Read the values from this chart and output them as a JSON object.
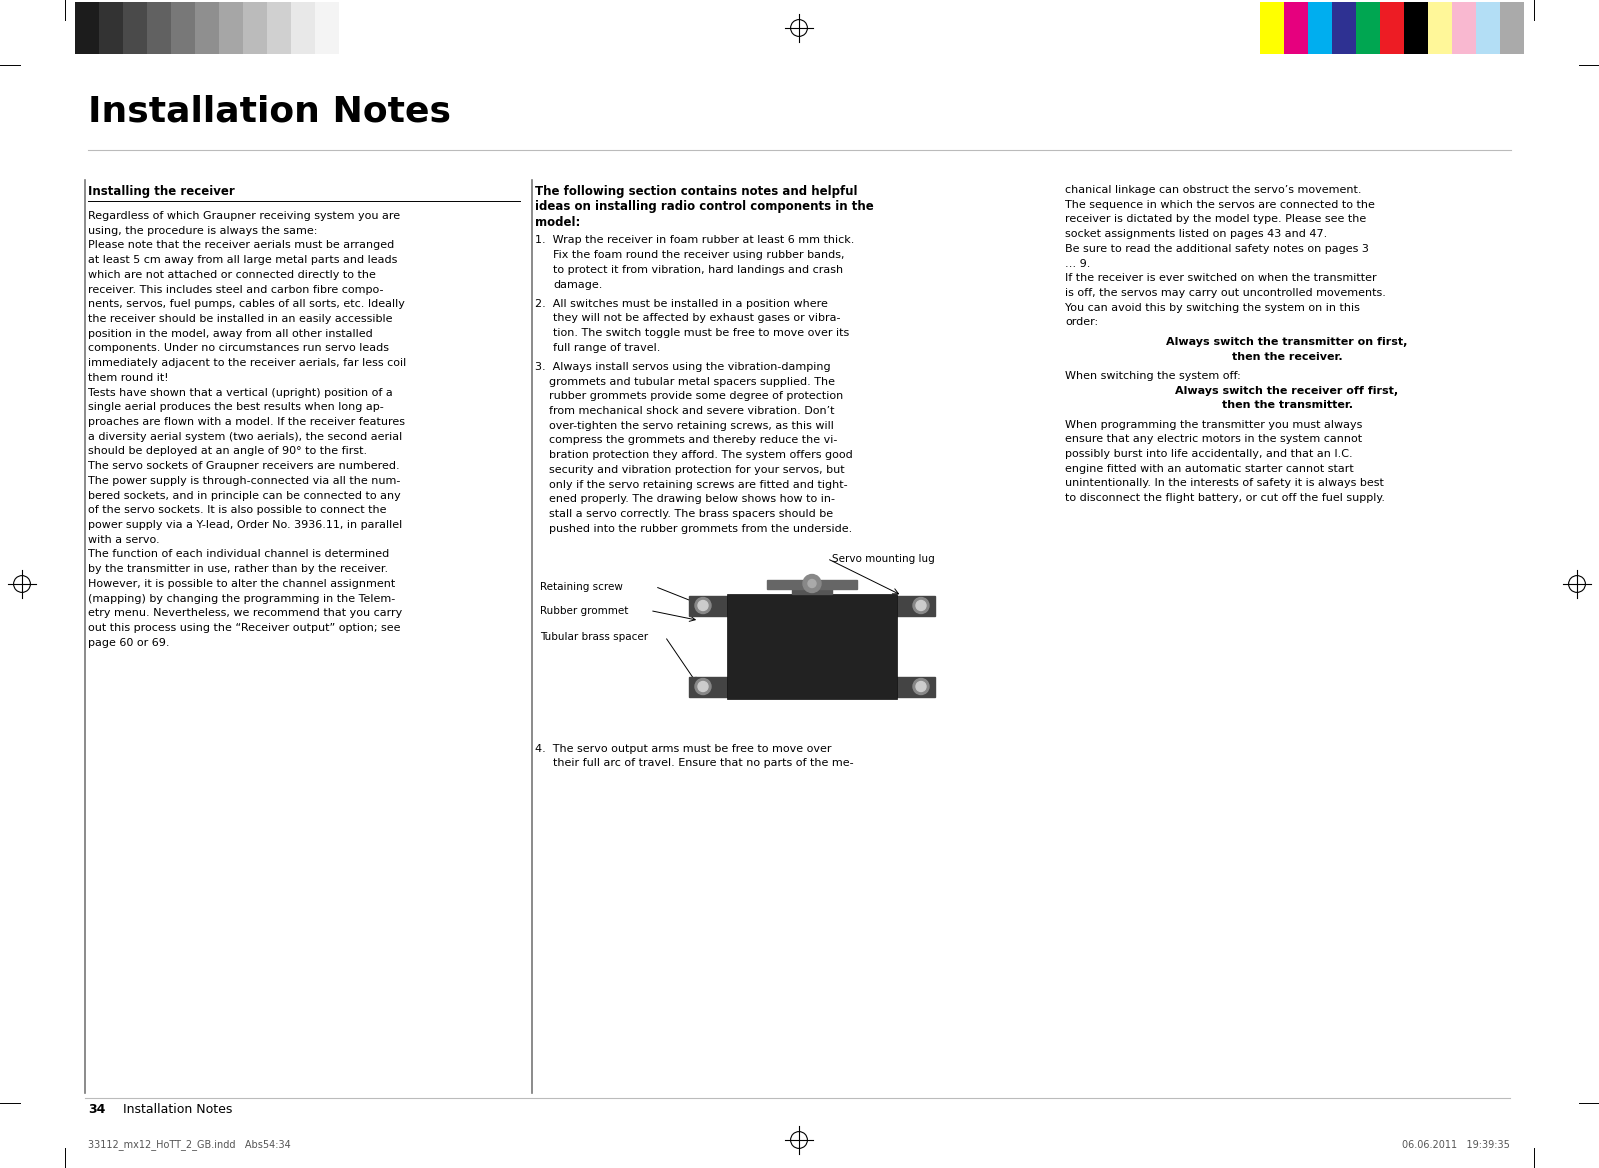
{
  "page_bg": "#ffffff",
  "title": "Installation Notes",
  "title_fontsize": 26,
  "footer_left": "33112_mx12_HoTT_2_GB.indd   Abs54:34",
  "footer_right": "06.06.2011   19:39:35",
  "page_number": "34",
  "page_number_label": "Installation Notes",
  "grayscale_colors": [
    "#1c1c1c",
    "#333333",
    "#4a4a4a",
    "#616161",
    "#787878",
    "#8f8f8f",
    "#a6a6a6",
    "#bbbbbb",
    "#d0d0d0",
    "#e8e8e8",
    "#f4f4f4"
  ],
  "color_bars": [
    "#ffff00",
    "#e6007e",
    "#00aeef",
    "#2e3192",
    "#00a651",
    "#ed1c24",
    "#000000",
    "#fff799",
    "#f9b8d0",
    "#b3def5",
    "#aaaaaa"
  ],
  "col1_header": "Installing the receiver",
  "col1_text_plain": "Regardless of which ",
  "col1_text_italic": "Graupner",
  "col1_text_rest": " receiving system you are\nusing, the procedure is always the same:\nPlease note that the receiver aerials must be arranged\nat least 5 cm away from all large metal parts and leads\nwhich are not attached or connected directly to the\nreceiver. This includes steel and carbon fibre compo-\nnents, servos, fuel pumps, cables of all sorts, etc. Ideally\nthe receiver should be installed in an easily accessible\nposition in the model, away from all other installed\ncomponents. Under no circumstances run servo leads\nimmediately adjacent to the receiver aerials, far less coil\nthem round it!\nTests have shown that a vertical (upright) position of a\nsingle aerial produces the best results when long ap-\nproaches are flown with a model. If the receiver features\na diversity aerial system (two aerials), the second aerial\nshould be deployed at an angle of 90° to the first.\nThe servo sockets of ",
  "col1_text_italic2": "Graupner",
  "col1_text_rest2": " receivers are numbered.\nThe power supply is through-connected via all the num-\nbered sockets, and in principle can be connected to any\nof the servo sockets. It is also possible to connect the\npower supply via a Y-lead, Order No. ",
  "col1_text_bold": "3936.11",
  "col1_text_rest3": ", in parallel\nwith a servo.\nThe function of each individual channel is determined\nby the transmitter in use, rather than by the receiver.\nHowever, it is possible to alter the channel assignment\n(mapping) by changing the programming in the Telem-\netry menu. Nevertheless, we recommend that you carry\nout this process using the “Receiver output” option; see\npage 60 or 69.",
  "col2_header": "The following section contains notes and helpful\nideas on installing radio control components in the\nmodel:",
  "col3_text": "chanical linkage can obstruct the servo’s movement.\nThe sequence in which the servos are connected to the\nreceiver is dictated by the model type. Please see the\nsocket assignments listed on pages 43 and 47.\nBe sure to read the additional safety notes on pages 3\n… 9.\nIf the receiver is ever switched on when the transmitter\nis off, the servos may carry out uncontrolled movements.\nYou can avoid this by switching the system on in this\norder:",
  "bold_line1": "Always switch the transmitter on first,",
  "bold_line2": "then the receiver.",
  "switch_off_text": "When switching the system off:",
  "bold_line3": "Always switch the receiver off first,",
  "bold_line4": "then the transmitter.",
  "col3_text2": "When programming the transmitter you must always\nensure that any electric motors in the system cannot\npossibly burst into life accidentally, and that an I.C.\nengine fitted with an automatic starter cannot start\nunintentionally. In the interests of safety it is always best\nto disconnect the flight battery, or cut off the fuel supply.",
  "text_color": "#000000",
  "line_color": "#000000"
}
